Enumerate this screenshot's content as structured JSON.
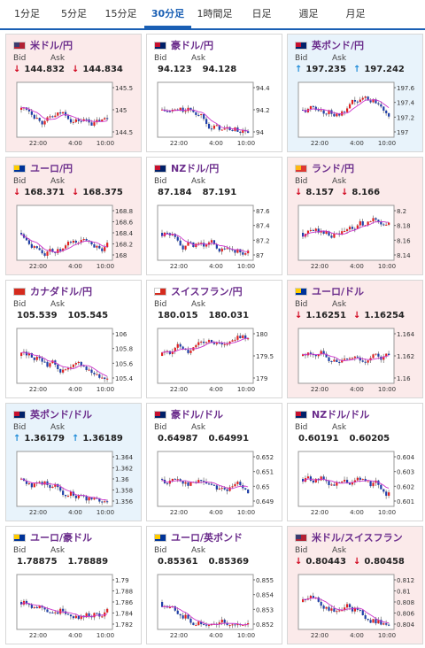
{
  "tabs": [
    "1分足",
    "5分足",
    "15分足",
    "30分足",
    "1時間足",
    "日足",
    "週足",
    "月足"
  ],
  "active_tab": 3,
  "colors": {
    "accent": "#1a5fb4",
    "down": "#d0021b",
    "up": "#1f8bd8",
    "ma": "#cc33cc"
  },
  "time_labels": [
    "22:00",
    "4:00",
    "10:00"
  ],
  "cards": [
    {
      "pair": "米ドル/円",
      "flag": "us",
      "bid_label": "Bid",
      "ask_label": "Ask",
      "bid": "144.832",
      "ask": "144.834",
      "dir": "down",
      "scale": [
        "145.5",
        "145",
        "144.5"
      ],
      "trend": "flat"
    },
    {
      "pair": "豪ドル/円",
      "flag": "au",
      "bid_label": "Bid",
      "ask_label": "Ask",
      "bid": "94.123",
      "ask": "94.128",
      "dir": "none",
      "scale": [
        "94.4",
        "94.2",
        "94"
      ],
      "trend": "down"
    },
    {
      "pair": "英ポンド/円",
      "flag": "gb",
      "bid_label": "Bid",
      "ask_label": "Ask",
      "bid": "197.235",
      "ask": "197.242",
      "dir": "up",
      "scale": [
        "197.6",
        "197.4",
        "197.2",
        "197"
      ],
      "trend": "flat"
    },
    {
      "pair": "ユーロ/円",
      "flag": "eu",
      "bid_label": "Bid",
      "ask_label": "Ask",
      "bid": "168.371",
      "ask": "168.375",
      "dir": "down",
      "scale": [
        "168.8",
        "168.6",
        "168.4",
        "168.2",
        "168"
      ],
      "trend": "flat"
    },
    {
      "pair": "NZドル/円",
      "flag": "nz",
      "bid_label": "Bid",
      "ask_label": "Ask",
      "bid": "87.184",
      "ask": "87.191",
      "dir": "none",
      "scale": [
        "87.6",
        "87.4",
        "87.2",
        "87"
      ],
      "trend": "down"
    },
    {
      "pair": "ランド/円",
      "flag": "za",
      "bid_label": "Bid",
      "ask_label": "Ask",
      "bid": "8.157",
      "ask": "8.166",
      "dir": "down",
      "scale": [
        "8.2",
        "8.18",
        "8.16",
        "8.14"
      ],
      "trend": "flat"
    },
    {
      "pair": "カナダドル/円",
      "flag": "ca",
      "bid_label": "Bid",
      "ask_label": "Ask",
      "bid": "105.539",
      "ask": "105.545",
      "dir": "none",
      "scale": [
        "106",
        "105.8",
        "105.6",
        "105.4"
      ],
      "trend": "down"
    },
    {
      "pair": "スイスフラン/円",
      "flag": "ch",
      "bid_label": "Bid",
      "ask_label": "Ask",
      "bid": "180.015",
      "ask": "180.031",
      "dir": "none",
      "scale": [
        "180",
        "179.5",
        "179"
      ],
      "trend": "up"
    },
    {
      "pair": "ユーロ/ドル",
      "flag": "eu",
      "bid_label": "Bid",
      "ask_label": "Ask",
      "bid": "1.16251",
      "ask": "1.16254",
      "dir": "down",
      "scale": [
        "1.164",
        "1.162",
        "1.16"
      ],
      "trend": "flat"
    },
    {
      "pair": "英ポンド/ドル",
      "flag": "gb",
      "bid_label": "Bid",
      "ask_label": "Ask",
      "bid": "1.36179",
      "ask": "1.36189",
      "dir": "up",
      "scale": [
        "1.364",
        "1.362",
        "1.36",
        "1.358",
        "1.356"
      ],
      "trend": "flat"
    },
    {
      "pair": "豪ドル/ドル",
      "flag": "au",
      "bid_label": "Bid",
      "ask_label": "Ask",
      "bid": "0.64987",
      "ask": "0.64991",
      "dir": "none",
      "scale": [
        "0.652",
        "0.651",
        "0.65",
        "0.649"
      ],
      "trend": "flat"
    },
    {
      "pair": "NZドル/ドル",
      "flag": "nz",
      "bid_label": "Bid",
      "ask_label": "Ask",
      "bid": "0.60191",
      "ask": "0.60205",
      "dir": "none",
      "scale": [
        "0.604",
        "0.603",
        "0.602",
        "0.601"
      ],
      "trend": "down"
    },
    {
      "pair": "ユーロ/豪ドル",
      "flag": "eu",
      "bid_label": "Bid",
      "ask_label": "Ask",
      "bid": "1.78875",
      "ask": "1.78889",
      "dir": "none",
      "scale": [
        "1.79",
        "1.788",
        "1.786",
        "1.784",
        "1.782"
      ],
      "trend": "up"
    },
    {
      "pair": "ユーロ/英ポンド",
      "flag": "eu",
      "bid_label": "Bid",
      "ask_label": "Ask",
      "bid": "0.85361",
      "ask": "0.85369",
      "dir": "none",
      "scale": [
        "0.855",
        "0.854",
        "0.853",
        "0.852"
      ],
      "trend": "down"
    },
    {
      "pair": "米ドル/スイスフラン",
      "flag": "us",
      "bid_label": "Bid",
      "ask_label": "Ask",
      "bid": "0.80443",
      "ask": "0.80458",
      "dir": "down",
      "scale": [
        "0.812",
        "0.81",
        "0.808",
        "0.806",
        "0.804"
      ],
      "trend": "down"
    }
  ]
}
